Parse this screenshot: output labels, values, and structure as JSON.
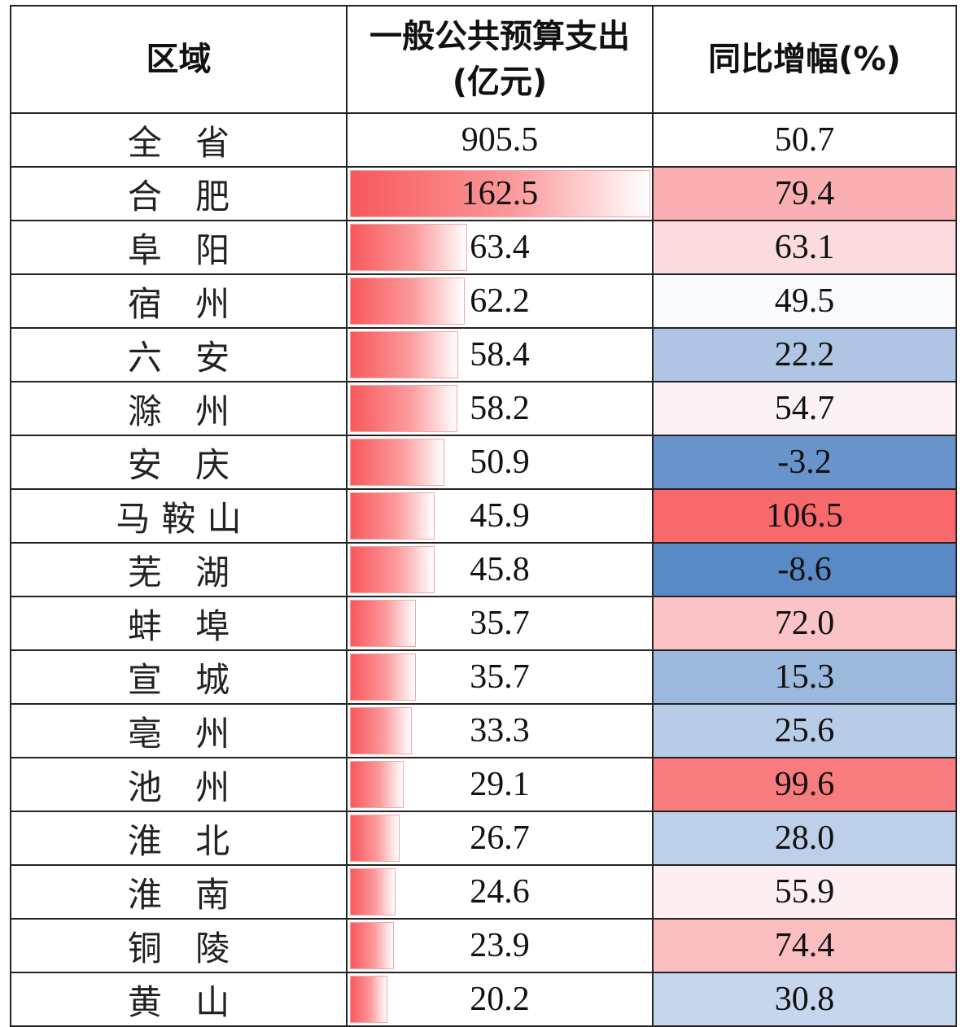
{
  "headers": {
    "region": "区域",
    "expenditure_line1": "一般公共预算支出",
    "expenditure_line2": "(亿元)",
    "growth": "同比增幅(%)"
  },
  "total": {
    "region": "全 省",
    "expenditure": "905.5",
    "growth": "50.7"
  },
  "chart_data": {
    "type": "table",
    "columns": [
      "区域",
      "一般公共预算支出(亿元)",
      "同比增幅(%)"
    ],
    "rows": [
      {
        "region": "合 肥",
        "expenditure": 162.5,
        "growth": 79.4,
        "expenditure_label": "162.5",
        "growth_label": "79.4"
      },
      {
        "region": "阜 阳",
        "expenditure": 63.4,
        "growth": 63.1,
        "expenditure_label": "63.4",
        "growth_label": "63.1"
      },
      {
        "region": "宿 州",
        "expenditure": 62.2,
        "growth": 49.5,
        "expenditure_label": "62.2",
        "growth_label": "49.5"
      },
      {
        "region": "六 安",
        "expenditure": 58.4,
        "growth": 22.2,
        "expenditure_label": "58.4",
        "growth_label": "22.2"
      },
      {
        "region": "滁 州",
        "expenditure": 58.2,
        "growth": 54.7,
        "expenditure_label": "58.2",
        "growth_label": "54.7"
      },
      {
        "region": "安 庆",
        "expenditure": 50.9,
        "growth": -3.2,
        "expenditure_label": "50.9",
        "growth_label": "-3.2"
      },
      {
        "region": "马鞍山",
        "expenditure": 45.9,
        "growth": 106.5,
        "expenditure_label": "45.9",
        "growth_label": "106.5"
      },
      {
        "region": "芜 湖",
        "expenditure": 45.8,
        "growth": -8.6,
        "expenditure_label": "45.8",
        "growth_label": "-8.6"
      },
      {
        "region": "蚌 埠",
        "expenditure": 35.7,
        "growth": 72.0,
        "expenditure_label": "35.7",
        "growth_label": "72.0"
      },
      {
        "region": "宣 城",
        "expenditure": 35.7,
        "growth": 15.3,
        "expenditure_label": "35.7",
        "growth_label": "15.3"
      },
      {
        "region": "亳 州",
        "expenditure": 33.3,
        "growth": 25.6,
        "expenditure_label": "33.3",
        "growth_label": "25.6"
      },
      {
        "region": "池 州",
        "expenditure": 29.1,
        "growth": 99.6,
        "expenditure_label": "29.1",
        "growth_label": "99.6"
      },
      {
        "region": "淮 北",
        "expenditure": 26.7,
        "growth": 28.0,
        "expenditure_label": "26.7",
        "growth_label": "28.0"
      },
      {
        "region": "淮 南",
        "expenditure": 24.6,
        "growth": 55.9,
        "expenditure_label": "24.6",
        "growth_label": "55.9"
      },
      {
        "region": "铜 陵",
        "expenditure": 23.9,
        "growth": 74.4,
        "expenditure_label": "23.9",
        "growth_label": "74.4"
      },
      {
        "region": "黄 山",
        "expenditure": 20.2,
        "growth": 30.8,
        "expenditure_label": "20.2",
        "growth_label": "30.8"
      }
    ],
    "data_bar_color": "#f8585b",
    "heat_colors": {
      "low": "#5a8ac6",
      "mid": "#fcfcff",
      "high": "#f8696b"
    },
    "heat_midpoint": 50.7
  }
}
